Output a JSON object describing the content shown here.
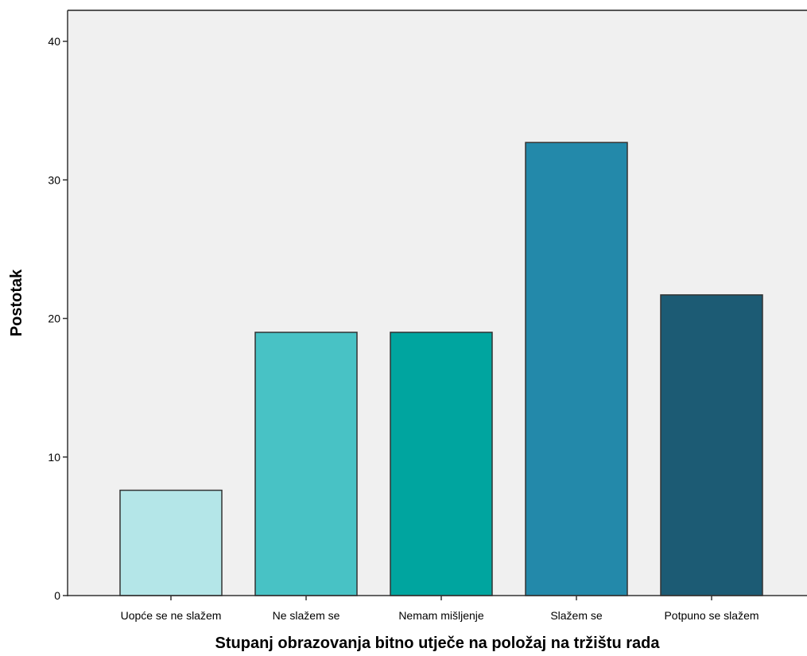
{
  "chart_data": {
    "type": "bar",
    "title": "",
    "xlabel": "Stupanj obrazovanja bitno utječe na položaj na tržištu rada",
    "ylabel": "Postotak",
    "categories": [
      "Uopće se ne slažem",
      "Ne slažem se",
      "Nemam mišljenje",
      "Slažem se",
      "Potpuno se slažem"
    ],
    "values": [
      7.6,
      19.0,
      19.0,
      32.7,
      21.7
    ],
    "colors": [
      "#b4e6e8",
      "#48c2c5",
      "#00a59f",
      "#2389aa",
      "#1c5b74"
    ],
    "ylim": [
      0,
      40
    ],
    "yticks": [
      0,
      10,
      20,
      30,
      40
    ],
    "grid": false,
    "legend": "none",
    "plot_background": "#f0f0f0",
    "bar_outline": "#333333"
  }
}
